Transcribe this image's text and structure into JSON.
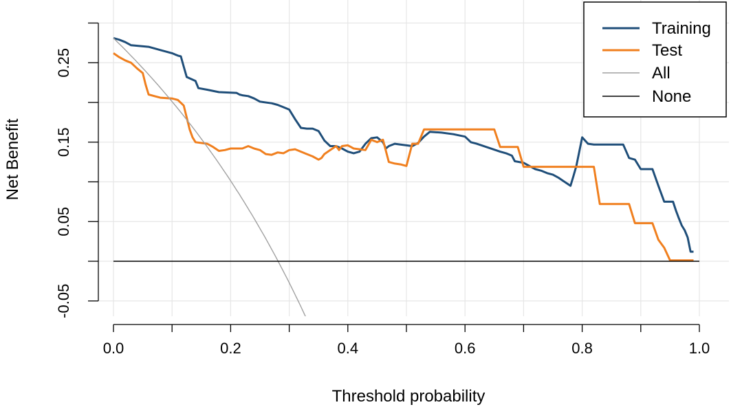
{
  "chart_data": {
    "type": "line",
    "title": "",
    "xlabel": "Threshold probability",
    "ylabel": "Net Benefit",
    "xlim": [
      0,
      1.0
    ],
    "ylim": [
      -0.05,
      0.3
    ],
    "grid": true,
    "legend_position": "top-right",
    "x_ticks": [
      "0.0",
      "0.2",
      "0.4",
      "0.6",
      "0.8",
      "1.0"
    ],
    "y_ticks": [
      "-0.05",
      "0.05",
      "0.15",
      "0.25"
    ],
    "series": [
      {
        "name": "Training",
        "color": "#1f4e79",
        "points": [
          [
            0.0,
            0.281
          ],
          [
            0.01,
            0.279
          ],
          [
            0.02,
            0.276
          ],
          [
            0.03,
            0.272
          ],
          [
            0.06,
            0.27
          ],
          [
            0.08,
            0.266
          ],
          [
            0.1,
            0.262
          ],
          [
            0.11,
            0.259
          ],
          [
            0.115,
            0.258
          ],
          [
            0.12,
            0.245
          ],
          [
            0.125,
            0.232
          ],
          [
            0.14,
            0.227
          ],
          [
            0.145,
            0.218
          ],
          [
            0.16,
            0.216
          ],
          [
            0.18,
            0.213
          ],
          [
            0.21,
            0.212
          ],
          [
            0.215,
            0.21
          ],
          [
            0.22,
            0.209
          ],
          [
            0.23,
            0.208
          ],
          [
            0.24,
            0.205
          ],
          [
            0.25,
            0.201
          ],
          [
            0.27,
            0.199
          ],
          [
            0.28,
            0.197
          ],
          [
            0.29,
            0.194
          ],
          [
            0.3,
            0.191
          ],
          [
            0.31,
            0.179
          ],
          [
            0.32,
            0.168
          ],
          [
            0.33,
            0.167
          ],
          [
            0.34,
            0.167
          ],
          [
            0.35,
            0.164
          ],
          [
            0.355,
            0.158
          ],
          [
            0.36,
            0.152
          ],
          [
            0.37,
            0.145
          ],
          [
            0.38,
            0.145
          ],
          [
            0.39,
            0.142
          ],
          [
            0.4,
            0.138
          ],
          [
            0.41,
            0.136
          ],
          [
            0.42,
            0.138
          ],
          [
            0.43,
            0.148
          ],
          [
            0.44,
            0.155
          ],
          [
            0.45,
            0.156
          ],
          [
            0.46,
            0.15
          ],
          [
            0.465,
            0.142
          ],
          [
            0.47,
            0.145
          ],
          [
            0.48,
            0.148
          ],
          [
            0.49,
            0.147
          ],
          [
            0.5,
            0.146
          ],
          [
            0.51,
            0.145
          ],
          [
            0.52,
            0.149
          ],
          [
            0.53,
            0.157
          ],
          [
            0.54,
            0.163
          ],
          [
            0.56,
            0.162
          ],
          [
            0.58,
            0.16
          ],
          [
            0.6,
            0.157
          ],
          [
            0.61,
            0.15
          ],
          [
            0.62,
            0.148
          ],
          [
            0.64,
            0.143
          ],
          [
            0.66,
            0.138
          ],
          [
            0.67,
            0.136
          ],
          [
            0.68,
            0.133
          ],
          [
            0.685,
            0.126
          ],
          [
            0.7,
            0.124
          ],
          [
            0.71,
            0.12
          ],
          [
            0.72,
            0.116
          ],
          [
            0.73,
            0.114
          ],
          [
            0.74,
            0.111
          ],
          [
            0.75,
            0.109
          ],
          [
            0.76,
            0.105
          ],
          [
            0.77,
            0.1
          ],
          [
            0.78,
            0.095
          ],
          [
            0.785,
            0.107
          ],
          [
            0.79,
            0.12
          ],
          [
            0.8,
            0.156
          ],
          [
            0.81,
            0.148
          ],
          [
            0.82,
            0.147
          ],
          [
            0.87,
            0.147
          ],
          [
            0.88,
            0.13
          ],
          [
            0.89,
            0.128
          ],
          [
            0.9,
            0.116
          ],
          [
            0.92,
            0.116
          ],
          [
            0.93,
            0.095
          ],
          [
            0.94,
            0.075
          ],
          [
            0.955,
            0.075
          ],
          [
            0.96,
            0.064
          ],
          [
            0.965,
            0.054
          ],
          [
            0.97,
            0.045
          ],
          [
            0.975,
            0.039
          ],
          [
            0.98,
            0.03
          ],
          [
            0.985,
            0.012
          ],
          [
            0.99,
            0.012
          ]
        ]
      },
      {
        "name": "Test",
        "color": "#f07f1e",
        "points": [
          [
            0.0,
            0.262
          ],
          [
            0.01,
            0.257
          ],
          [
            0.02,
            0.253
          ],
          [
            0.03,
            0.25
          ],
          [
            0.04,
            0.243
          ],
          [
            0.05,
            0.237
          ],
          [
            0.055,
            0.222
          ],
          [
            0.06,
            0.21
          ],
          [
            0.07,
            0.208
          ],
          [
            0.08,
            0.206
          ],
          [
            0.1,
            0.205
          ],
          [
            0.11,
            0.203
          ],
          [
            0.12,
            0.196
          ],
          [
            0.125,
            0.181
          ],
          [
            0.13,
            0.166
          ],
          [
            0.135,
            0.156
          ],
          [
            0.14,
            0.15
          ],
          [
            0.16,
            0.148
          ],
          [
            0.17,
            0.144
          ],
          [
            0.18,
            0.139
          ],
          [
            0.19,
            0.14
          ],
          [
            0.2,
            0.142
          ],
          [
            0.22,
            0.142
          ],
          [
            0.23,
            0.145
          ],
          [
            0.24,
            0.142
          ],
          [
            0.25,
            0.14
          ],
          [
            0.26,
            0.135
          ],
          [
            0.27,
            0.134
          ],
          [
            0.28,
            0.137
          ],
          [
            0.29,
            0.136
          ],
          [
            0.3,
            0.14
          ],
          [
            0.31,
            0.141
          ],
          [
            0.32,
            0.138
          ],
          [
            0.33,
            0.135
          ],
          [
            0.34,
            0.132
          ],
          [
            0.35,
            0.128
          ],
          [
            0.355,
            0.13
          ],
          [
            0.36,
            0.135
          ],
          [
            0.37,
            0.14
          ],
          [
            0.38,
            0.145
          ],
          [
            0.385,
            0.14
          ],
          [
            0.39,
            0.145
          ],
          [
            0.4,
            0.146
          ],
          [
            0.41,
            0.142
          ],
          [
            0.42,
            0.141
          ],
          [
            0.43,
            0.14
          ],
          [
            0.44,
            0.153
          ],
          [
            0.45,
            0.15
          ],
          [
            0.46,
            0.153
          ],
          [
            0.47,
            0.125
          ],
          [
            0.48,
            0.123
          ],
          [
            0.49,
            0.122
          ],
          [
            0.5,
            0.12
          ],
          [
            0.51,
            0.148
          ],
          [
            0.52,
            0.148
          ],
          [
            0.53,
            0.166
          ],
          [
            0.65,
            0.166
          ],
          [
            0.66,
            0.144
          ],
          [
            0.69,
            0.144
          ],
          [
            0.7,
            0.119
          ],
          [
            0.82,
            0.119
          ],
          [
            0.83,
            0.072
          ],
          [
            0.88,
            0.072
          ],
          [
            0.89,
            0.048
          ],
          [
            0.92,
            0.048
          ],
          [
            0.93,
            0.027
          ],
          [
            0.94,
            0.017
          ],
          [
            0.95,
            0.001
          ],
          [
            0.99,
            0.001
          ]
        ]
      },
      {
        "name": "All",
        "color": "#a0a0a0",
        "prevalence": 0.281
      },
      {
        "name": "None",
        "color": "#000000",
        "value": 0
      }
    ]
  }
}
